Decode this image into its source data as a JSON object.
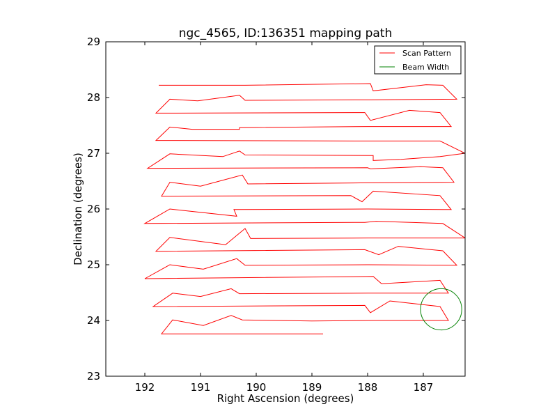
{
  "chart_data": {
    "type": "line",
    "title": "ngc_4565, ID:136351 mapping path",
    "xlabel": "Right Ascension (degrees)",
    "ylabel": "Declination (degrees)",
    "xlim": [
      192.7,
      186.25
    ],
    "ylim": [
      23,
      29
    ],
    "x_inverted": true,
    "grid": false,
    "legend_position": "top-right",
    "xticks": [
      {
        "value": 192,
        "label": "192"
      },
      {
        "value": 191,
        "label": "191"
      },
      {
        "value": 190,
        "label": "190"
      },
      {
        "value": 189,
        "label": "189"
      },
      {
        "value": 188,
        "label": "188"
      },
      {
        "value": 187,
        "label": "187"
      }
    ],
    "yticks": [
      {
        "value": 23,
        "label": "23"
      },
      {
        "value": 24,
        "label": "24"
      },
      {
        "value": 25,
        "label": "25"
      },
      {
        "value": 26,
        "label": "26"
      },
      {
        "value": 27,
        "label": "27"
      },
      {
        "value": 28,
        "label": "28"
      },
      {
        "value": 29,
        "label": "29"
      }
    ],
    "series": [
      {
        "name": "Scan Pattern",
        "color": "#ff0000",
        "kind": "line",
        "points": [
          [
            188.8,
            23.76
          ],
          [
            189.4,
            23.76
          ],
          [
            191.7,
            23.76
          ],
          [
            191.5,
            24.01
          ],
          [
            190.95,
            23.91
          ],
          [
            190.45,
            24.09
          ],
          [
            190.25,
            24.01
          ],
          [
            189.0,
            23.99
          ],
          [
            187.9,
            24.0
          ],
          [
            186.55,
            24.0
          ],
          [
            186.7,
            24.25
          ],
          [
            187.6,
            24.35
          ],
          [
            187.95,
            24.14
          ],
          [
            188.05,
            24.27
          ],
          [
            191.85,
            24.25
          ],
          [
            191.5,
            24.49
          ],
          [
            191.0,
            24.43
          ],
          [
            190.45,
            24.57
          ],
          [
            190.3,
            24.48
          ],
          [
            188.0,
            24.49
          ],
          [
            186.55,
            24.49
          ],
          [
            186.7,
            24.72
          ],
          [
            187.75,
            24.66
          ],
          [
            187.9,
            24.79
          ],
          [
            192.0,
            24.75
          ],
          [
            191.55,
            25.0
          ],
          [
            190.95,
            24.92
          ],
          [
            190.35,
            25.11
          ],
          [
            190.2,
            24.99
          ],
          [
            188.0,
            25.0
          ],
          [
            186.4,
            24.99
          ],
          [
            186.65,
            25.25
          ],
          [
            187.45,
            25.33
          ],
          [
            187.8,
            25.18
          ],
          [
            188.05,
            25.27
          ],
          [
            191.8,
            25.24
          ],
          [
            191.55,
            25.49
          ],
          [
            190.55,
            25.36
          ],
          [
            190.2,
            25.65
          ],
          [
            190.1,
            25.47
          ],
          [
            188.0,
            25.48
          ],
          [
            186.25,
            25.48
          ],
          [
            186.65,
            25.74
          ],
          [
            187.85,
            25.78
          ],
          [
            188.05,
            25.76
          ],
          [
            192.0,
            25.74
          ],
          [
            191.55,
            26.0
          ],
          [
            190.35,
            25.87
          ],
          [
            190.4,
            25.99
          ],
          [
            188.0,
            26.0
          ],
          [
            186.5,
            25.99
          ],
          [
            186.7,
            26.24
          ],
          [
            187.9,
            26.32
          ],
          [
            188.1,
            26.13
          ],
          [
            188.3,
            26.24
          ],
          [
            191.7,
            26.23
          ],
          [
            191.55,
            26.48
          ],
          [
            191.0,
            26.41
          ],
          [
            190.25,
            26.61
          ],
          [
            190.15,
            26.45
          ],
          [
            188.0,
            26.47
          ],
          [
            186.45,
            26.48
          ],
          [
            186.65,
            26.74
          ],
          [
            187.05,
            26.76
          ],
          [
            187.95,
            26.72
          ],
          [
            188.0,
            26.74
          ],
          [
            191.95,
            26.73
          ],
          [
            191.55,
            26.99
          ],
          [
            190.6,
            26.94
          ],
          [
            190.3,
            27.04
          ],
          [
            190.2,
            26.97
          ],
          [
            187.9,
            26.96
          ],
          [
            187.9,
            26.87
          ],
          [
            187.4,
            26.89
          ],
          [
            186.7,
            26.94
          ],
          [
            186.25,
            27.0
          ],
          [
            186.7,
            27.22
          ],
          [
            187.95,
            27.22
          ],
          [
            191.8,
            27.23
          ],
          [
            191.55,
            27.47
          ],
          [
            191.15,
            27.43
          ],
          [
            190.3,
            27.43
          ],
          [
            190.3,
            27.46
          ],
          [
            188.0,
            27.48
          ],
          [
            186.5,
            27.48
          ],
          [
            186.7,
            27.73
          ],
          [
            187.25,
            27.77
          ],
          [
            187.95,
            27.59
          ],
          [
            188.05,
            27.73
          ],
          [
            191.8,
            27.72
          ],
          [
            191.55,
            27.97
          ],
          [
            191.05,
            27.94
          ],
          [
            190.3,
            28.04
          ],
          [
            190.2,
            27.95
          ],
          [
            187.95,
            27.96
          ],
          [
            186.4,
            27.97
          ],
          [
            186.65,
            28.22
          ],
          [
            186.95,
            28.23
          ],
          [
            187.9,
            28.12
          ],
          [
            187.95,
            28.25
          ],
          [
            190.2,
            28.22
          ],
          [
            191.75,
            28.22
          ]
        ]
      },
      {
        "name": "Beam Width",
        "color": "#008000",
        "kind": "circle",
        "center": [
          186.68,
          24.2
        ],
        "radius": 0.37
      }
    ]
  }
}
